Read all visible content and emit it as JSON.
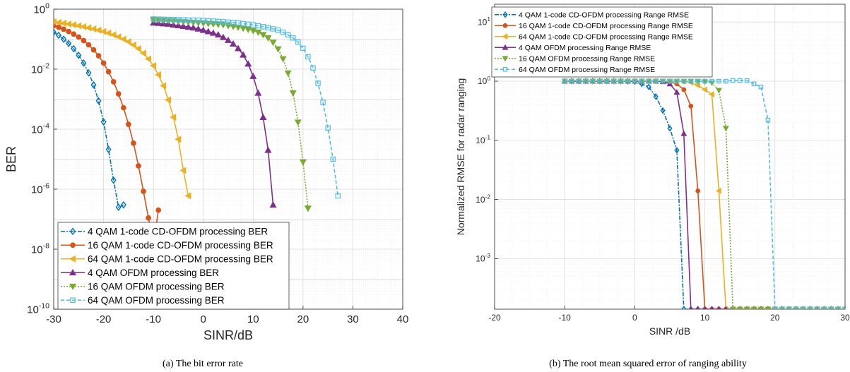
{
  "chart_data": [
    {
      "type": "line",
      "caption": "(a) The bit error rate",
      "xlabel": "SINR/dB",
      "ylabel": "BER",
      "xlim": [
        -30,
        40
      ],
      "ylim": [
        1e-10,
        1
      ],
      "yscale": "log",
      "grid": true,
      "xticks": [
        "-30",
        "-20",
        "-10",
        "0",
        "10",
        "20",
        "30",
        "40"
      ],
      "yticks": [
        {
          "base": "10",
          "exp": "-10"
        },
        {
          "base": "10",
          "exp": "-8"
        },
        {
          "base": "10",
          "exp": "-6"
        },
        {
          "base": "10",
          "exp": "-4"
        },
        {
          "base": "10",
          "exp": "-2"
        },
        {
          "base": "10",
          "exp": "0"
        }
      ],
      "legend_position": "bottom-left",
      "series": [
        {
          "name": "4 QAM 1-code CD-OFDM processing BER",
          "color": "#0072BD",
          "marker": "diamond",
          "dash": "6,2,2,2",
          "x": [
            -30,
            -29,
            -28,
            -27,
            -26,
            -25,
            -24,
            -23,
            -22,
            -21,
            -20,
            -19,
            -18,
            -17,
            -16
          ],
          "y": [
            0.17,
            0.135,
            0.1,
            0.072,
            0.048,
            0.029,
            0.016,
            0.0075,
            0.003,
            0.00088,
            0.000175,
            2.1e-05,
            2e-06,
            2.5e-07,
            3e-07
          ]
        },
        {
          "name": "16 QAM 1-code CD-OFDM processing BER",
          "color": "#D95319",
          "marker": "circle",
          "dash": "",
          "x": [
            -30,
            -29,
            -28,
            -27,
            -26,
            -25,
            -24,
            -23,
            -22,
            -21,
            -20,
            -19,
            -18,
            -17,
            -16,
            -15,
            -14,
            -13,
            -12,
            -11,
            -10,
            -9
          ],
          "y": [
            0.28,
            0.25,
            0.215,
            0.18,
            0.148,
            0.118,
            0.09,
            0.065,
            0.044,
            0.028,
            0.016,
            0.0082,
            0.0038,
            0.0015,
            0.00052,
            0.000145,
            3.4e-05,
            6e-06,
            8.5e-07,
            1.1e-07,
            1.5e-08,
            2e-07
          ]
        },
        {
          "name": "64 QAM 1-code CD-OFDM processing BER",
          "color": "#EDB120",
          "marker": "triangle-left",
          "dash": "",
          "x": [
            -30,
            -29,
            -28,
            -27,
            -26,
            -25,
            -24,
            -23,
            -22,
            -21,
            -20,
            -19,
            -18,
            -17,
            -16,
            -15,
            -14,
            -13,
            -12,
            -11,
            -10,
            -9,
            -8,
            -7,
            -6,
            -5,
            -4,
            -3
          ],
          "y": [
            0.38,
            0.36,
            0.34,
            0.32,
            0.3,
            0.28,
            0.26,
            0.24,
            0.22,
            0.2,
            0.18,
            0.16,
            0.14,
            0.12,
            0.1,
            0.082,
            0.064,
            0.048,
            0.034,
            0.022,
            0.013,
            0.0065,
            0.0028,
            0.00095,
            0.00025,
            4.6e-05,
            4.2e-06,
            6e-07
          ]
        },
        {
          "name": "4 QAM OFDM processing BER",
          "color": "#7E2F8E",
          "marker": "triangle-up",
          "dash": "",
          "x": [
            -10,
            -9,
            -8,
            -7,
            -6,
            -5,
            -4,
            -3,
            -2,
            -1,
            0,
            1,
            2,
            3,
            4,
            5,
            6,
            7,
            8,
            9,
            10,
            11,
            12,
            13,
            14
          ],
          "y": [
            0.35,
            0.34,
            0.33,
            0.32,
            0.3,
            0.285,
            0.27,
            0.255,
            0.24,
            0.22,
            0.2,
            0.18,
            0.16,
            0.14,
            0.115,
            0.092,
            0.07,
            0.049,
            0.03,
            0.015,
            0.0058,
            0.0016,
            0.00025,
            2e-05,
            3e-07
          ]
        },
        {
          "name": "16 QAM OFDM processing BER",
          "color": "#77AC30",
          "marker": "triangle-down",
          "dash": "2,2",
          "x": [
            -10,
            -9,
            -8,
            -7,
            -6,
            -5,
            -4,
            -3,
            -2,
            -1,
            0,
            1,
            2,
            3,
            4,
            5,
            6,
            7,
            8,
            9,
            10,
            11,
            12,
            13,
            14,
            15,
            16,
            17,
            18,
            19,
            20,
            21
          ],
          "y": [
            0.44,
            0.43,
            0.42,
            0.41,
            0.4,
            0.39,
            0.38,
            0.37,
            0.36,
            0.35,
            0.34,
            0.33,
            0.32,
            0.31,
            0.3,
            0.28,
            0.265,
            0.25,
            0.23,
            0.21,
            0.19,
            0.17,
            0.14,
            0.11,
            0.078,
            0.047,
            0.022,
            0.0074,
            0.0016,
            0.00017,
            8e-06,
            2.3e-07
          ]
        },
        {
          "name": "64 QAM OFDM processing BER",
          "color": "#4DBEEE",
          "marker": "square",
          "dash": "5,3",
          "x": [
            -10,
            -9,
            -8,
            -7,
            -6,
            -5,
            -4,
            -3,
            -2,
            -1,
            0,
            1,
            2,
            3,
            4,
            5,
            6,
            7,
            8,
            9,
            10,
            11,
            12,
            13,
            14,
            15,
            16,
            17,
            18,
            19,
            20,
            21,
            22,
            23,
            24,
            25,
            26,
            27
          ],
          "y": [
            0.47,
            0.465,
            0.46,
            0.455,
            0.45,
            0.445,
            0.44,
            0.435,
            0.43,
            0.425,
            0.42,
            0.41,
            0.4,
            0.39,
            0.38,
            0.37,
            0.36,
            0.35,
            0.33,
            0.315,
            0.3,
            0.28,
            0.26,
            0.24,
            0.22,
            0.2,
            0.17,
            0.14,
            0.11,
            0.08,
            0.05,
            0.026,
            0.011,
            0.0034,
            0.00078,
            0.00011,
            1e-05,
            6e-07
          ]
        }
      ]
    },
    {
      "type": "line",
      "caption": "(b) The root mean squared error of ranging ability",
      "xlabel": "SINR /dB",
      "ylabel": "Normalized RMSE for radar ranging",
      "xlim": [
        -20,
        30
      ],
      "ylim": [
        0.00014,
        20
      ],
      "yscale": "log",
      "grid": true,
      "xticks": [
        "-20",
        "-10",
        "0",
        "10",
        "20",
        "30"
      ],
      "yticks": [
        {
          "base": "10",
          "exp": "-3"
        },
        {
          "base": "10",
          "exp": "-2"
        },
        {
          "base": "10",
          "exp": "-1"
        },
        {
          "base": "10",
          "exp": "0"
        },
        {
          "base": "10",
          "exp": "1"
        }
      ],
      "legend_position": "top-left",
      "series": [
        {
          "name": "4 QAM 1-code CD-OFDM processing Range RMSE",
          "color": "#0072BD",
          "marker": "diamond",
          "dash": "6,2,2,2",
          "x": [
            -10,
            -9,
            -8,
            -7,
            -6,
            -5,
            -4,
            -3,
            -2,
            -1,
            0,
            1,
            2,
            3,
            4,
            5,
            6,
            7,
            8,
            9,
            10,
            11,
            12,
            13,
            14,
            15,
            16,
            17,
            18,
            19,
            20,
            21,
            22,
            23,
            24,
            25,
            26,
            27,
            28,
            29,
            30
          ],
          "y": [
            1.0,
            1.0,
            1.0,
            1.0,
            1.0,
            1.0,
            1.0,
            1.0,
            1.0,
            0.99,
            0.98,
            0.9,
            0.8,
            0.55,
            0.32,
            0.16,
            0.068,
            0.00014,
            0.00014,
            0.00014,
            0.00014,
            0.00014,
            0.00014,
            0.00014,
            0.00014,
            0.00014,
            0.00014,
            0.00014,
            0.00014,
            0.00014,
            0.00014,
            0.00014,
            0.00014,
            0.00014,
            0.00014,
            0.00014,
            0.00014,
            0.00014,
            0.00014,
            0.00014,
            0.00014
          ]
        },
        {
          "name": "16 QAM 1-code CD-OFDM processing Range RMSE",
          "color": "#D95319",
          "marker": "circle",
          "dash": "",
          "x": [
            -10,
            -9,
            -8,
            -7,
            -6,
            -5,
            -4,
            -3,
            -2,
            -1,
            0,
            1,
            2,
            3,
            4,
            5,
            6,
            7,
            8,
            9,
            10,
            11,
            12,
            13,
            14,
            15,
            16,
            17,
            18,
            19,
            20,
            21,
            22,
            23,
            24,
            25,
            26,
            27,
            28,
            29,
            30
          ],
          "y": [
            1.0,
            1.0,
            1.0,
            1.0,
            1.0,
            1.0,
            1.0,
            1.0,
            1.0,
            1.0,
            1.0,
            1.0,
            1.0,
            1.0,
            0.99,
            0.97,
            0.9,
            0.72,
            0.38,
            0.014,
            0.00014,
            0.00014,
            0.00014,
            0.00014,
            0.00014,
            0.00014,
            0.00014,
            0.00014,
            0.00014,
            0.00014,
            0.00014,
            0.00014,
            0.00014,
            0.00014,
            0.00014,
            0.00014,
            0.00014,
            0.00014,
            0.00014,
            0.00014,
            0.00014
          ]
        },
        {
          "name": "64 QAM 1-code CD-OFDM processing Range RMSE",
          "color": "#EDB120",
          "marker": "triangle-left",
          "dash": "",
          "x": [
            -10,
            -9,
            -8,
            -7,
            -6,
            -5,
            -4,
            -3,
            -2,
            -1,
            0,
            1,
            2,
            3,
            4,
            5,
            6,
            7,
            8,
            9,
            10,
            11,
            12,
            13,
            14,
            15,
            16,
            17,
            18,
            19,
            20,
            21,
            22,
            23,
            24,
            25,
            26,
            27,
            28,
            29,
            30
          ],
          "y": [
            1.0,
            1.0,
            1.0,
            1.0,
            1.0,
            1.0,
            1.0,
            1.0,
            1.0,
            1.0,
            1.0,
            1.0,
            1.0,
            1.0,
            1.0,
            1.0,
            1.0,
            0.99,
            0.95,
            0.85,
            0.72,
            0.6,
            0.014,
            0.00014,
            0.00014,
            0.00014,
            0.00014,
            0.00014,
            0.00014,
            0.00014,
            0.00014,
            0.00014,
            0.00014,
            0.00014,
            0.00014,
            0.00014,
            0.00014,
            0.00014,
            0.00014,
            0.00014,
            0.00014
          ]
        },
        {
          "name": "4 QAM OFDM processing Range RMSE",
          "color": "#7E2F8E",
          "marker": "triangle-up",
          "dash": "",
          "x": [
            -10,
            -9,
            -8,
            -7,
            -6,
            -5,
            -4,
            -3,
            -2,
            -1,
            0,
            1,
            2,
            3,
            4,
            5,
            6,
            7,
            8,
            9,
            10,
            11,
            12,
            13,
            14,
            15,
            16,
            17,
            18,
            19,
            20,
            21,
            22,
            23,
            24,
            25,
            26,
            27,
            28,
            29,
            30
          ],
          "y": [
            1.0,
            1.0,
            1.0,
            1.0,
            1.0,
            1.0,
            1.0,
            1.0,
            1.0,
            1.0,
            1.0,
            1.0,
            1.0,
            1.0,
            0.98,
            0.9,
            0.65,
            0.13,
            0.00014,
            0.00014,
            0.00014,
            0.00014,
            0.00014,
            0.00014,
            0.00014,
            0.00014,
            0.00014,
            0.00014,
            0.00014,
            0.00014,
            0.00014,
            0.00014,
            0.00014,
            0.00014,
            0.00014,
            0.00014,
            0.00014,
            0.00014,
            0.00014,
            0.00014,
            0.00014
          ]
        },
        {
          "name": "16 QAM OFDM processing Range RMSE",
          "color": "#77AC30",
          "marker": "triangle-down",
          "dash": "2,2",
          "x": [
            -10,
            -9,
            -8,
            -7,
            -6,
            -5,
            -4,
            -3,
            -2,
            -1,
            0,
            1,
            2,
            3,
            4,
            5,
            6,
            7,
            8,
            9,
            10,
            11,
            12,
            13,
            14,
            15,
            16,
            17,
            18,
            19,
            20,
            21,
            22,
            23,
            24,
            25,
            26,
            27,
            28,
            29,
            30
          ],
          "y": [
            1.0,
            1.0,
            1.0,
            1.0,
            1.0,
            1.0,
            1.0,
            1.0,
            1.0,
            1.0,
            1.0,
            1.0,
            1.0,
            1.0,
            1.0,
            1.0,
            1.0,
            1.0,
            1.0,
            1.0,
            0.98,
            0.94,
            0.7,
            0.16,
            0.00014,
            0.00014,
            0.00014,
            0.00014,
            0.00014,
            0.00014,
            0.00014,
            0.00014,
            0.00014,
            0.00014,
            0.00014,
            0.00014,
            0.00014,
            0.00014,
            0.00014,
            0.00014,
            0.00014
          ]
        },
        {
          "name": "64 QAM OFDM processing Range RMSE",
          "color": "#4DBEEE",
          "marker": "square",
          "dash": "5,3",
          "x": [
            -10,
            -9,
            -8,
            -7,
            -6,
            -5,
            -4,
            -3,
            -2,
            -1,
            0,
            1,
            2,
            3,
            4,
            5,
            6,
            7,
            8,
            9,
            10,
            11,
            12,
            13,
            14,
            15,
            16,
            17,
            18,
            19,
            20,
            21,
            22,
            23,
            24,
            25,
            26,
            27,
            28,
            29,
            30
          ],
          "y": [
            1.0,
            1.0,
            1.0,
            1.0,
            1.0,
            1.0,
            1.0,
            1.0,
            1.0,
            1.0,
            1.0,
            1.0,
            1.0,
            1.0,
            1.0,
            1.0,
            1.0,
            1.0,
            1.0,
            1.0,
            1.0,
            1.0,
            1.0,
            1.0,
            1.03,
            1.03,
            1.02,
            0.9,
            0.8,
            0.22,
            0.00014,
            0.00014,
            0.00014,
            0.00014,
            0.00014,
            0.00014,
            0.00014,
            0.00014,
            0.00014,
            0.00014,
            0.00014
          ]
        }
      ]
    }
  ]
}
